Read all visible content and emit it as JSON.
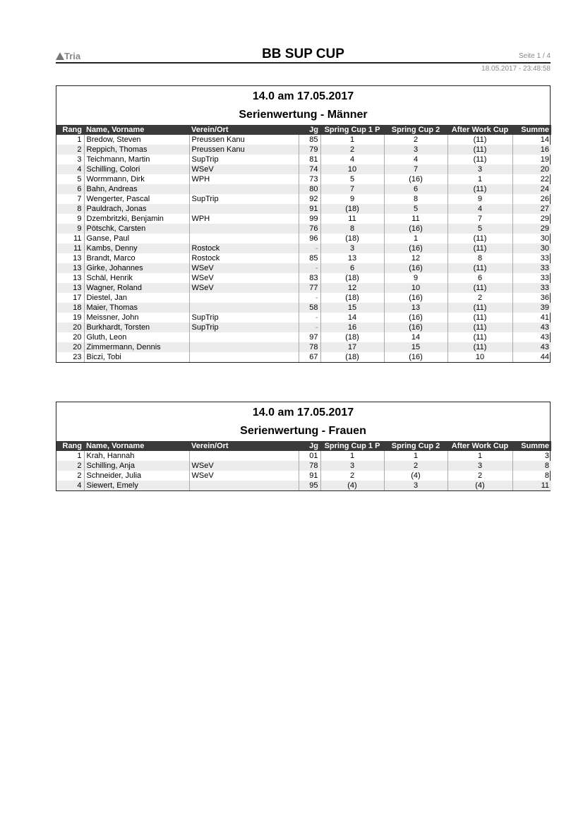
{
  "header": {
    "logo": "Tria",
    "title": "BB SUP CUP",
    "page": "Seite  1 / 4",
    "datetime": "18.05.2017  -  23:48:58"
  },
  "columns": [
    "Rang",
    "Name, Vorname",
    "Verein/Ort",
    "Jg",
    "Spring Cup 1 P",
    "Spring Cup 2",
    "After Work Cup",
    "Summe"
  ],
  "tables": [
    {
      "title": "14.0  am  17.05.2017",
      "subtitle": "Serienwertung  -  Männer",
      "rows": [
        [
          "1",
          "Bredow, Steven",
          "Preussen Kanu",
          "85",
          "1",
          "2",
          "(11)",
          "14"
        ],
        [
          "2",
          "Reppich, Thomas",
          "Preussen Kanu",
          "79",
          "2",
          "3",
          "(11)",
          "16"
        ],
        [
          "3",
          "Teichmann, Martin",
          "SupTrip",
          "81",
          "4",
          "4",
          "(11)",
          "19"
        ],
        [
          "4",
          "Schilling, Colori",
          "WSeV",
          "74",
          "10",
          "7",
          "3",
          "20"
        ],
        [
          "5",
          "Wormmann, Dirk",
          "WPH",
          "73",
          "5",
          "(16)",
          "1",
          "22"
        ],
        [
          "6",
          "Bahn, Andreas",
          "",
          "80",
          "7",
          "6",
          "(11)",
          "24"
        ],
        [
          "7",
          "Wengerter, Pascal",
          "SupTrip",
          "92",
          "9",
          "8",
          "9",
          "26"
        ],
        [
          "8",
          "Pauldrach, Jonas",
          "",
          "91",
          "(18)",
          "5",
          "4",
          "27"
        ],
        [
          "9",
          "Dzembritzki, Benjamin",
          "WPH",
          "99",
          "11",
          "11",
          "7",
          "29"
        ],
        [
          "9",
          "Pötschk, Carsten",
          "",
          "76",
          "8",
          "(16)",
          "5",
          "29"
        ],
        [
          "11",
          "Ganse, Paul",
          "",
          "96",
          "(18)",
          "1",
          "(11)",
          "30"
        ],
        [
          "11",
          "Kambs, Denny",
          "Rostock",
          "-",
          "3",
          "(16)",
          "(11)",
          "30"
        ],
        [
          "13",
          "Brandt, Marco",
          "Rostock",
          "85",
          "13",
          "12",
          "8",
          "33"
        ],
        [
          "13",
          "Girke, Johannes",
          "WSeV",
          "-",
          "6",
          "(16)",
          "(11)",
          "33"
        ],
        [
          "13",
          "Schäl, Henrik",
          "WSeV",
          "83",
          "(18)",
          "9",
          "6",
          "33"
        ],
        [
          "13",
          "Wagner, Roland",
          "WSeV",
          "77",
          "12",
          "10",
          "(11)",
          "33"
        ],
        [
          "17",
          "Diestel, Jan",
          "",
          "-",
          "(18)",
          "(16)",
          "2",
          "36"
        ],
        [
          "18",
          "Maier, Thomas",
          "",
          "58",
          "15",
          "13",
          "(11)",
          "39"
        ],
        [
          "19",
          "Meissner, John",
          "SupTrip",
          "-",
          "14",
          "(16)",
          "(11)",
          "41"
        ],
        [
          "20",
          "Burkhardt, Torsten",
          "SupTrip",
          "-",
          "16",
          "(16)",
          "(11)",
          "43"
        ],
        [
          "20",
          "Gluth, Leon",
          "",
          "97",
          "(18)",
          "14",
          "(11)",
          "43"
        ],
        [
          "20",
          "Zimmermann, Dennis",
          "",
          "78",
          "17",
          "15",
          "(11)",
          "43"
        ],
        [
          "23",
          "Biczi, Tobi",
          "",
          "67",
          "(18)",
          "(16)",
          "10",
          "44"
        ]
      ]
    },
    {
      "title": "14.0  am  17.05.2017",
      "subtitle": "Serienwertung  -  Frauen",
      "rows": [
        [
          "1",
          "Krah, Hannah",
          "",
          "01",
          "1",
          "1",
          "1",
          "3"
        ],
        [
          "2",
          "Schilling, Anja",
          "WSeV",
          "78",
          "3",
          "2",
          "3",
          "8"
        ],
        [
          "2",
          "Schneider, Julia",
          "WSeV",
          "91",
          "2",
          "(4)",
          "2",
          "8"
        ],
        [
          "4",
          "Siewert, Emely",
          "",
          "95",
          "(4)",
          "3",
          "(4)",
          "11"
        ]
      ]
    }
  ]
}
